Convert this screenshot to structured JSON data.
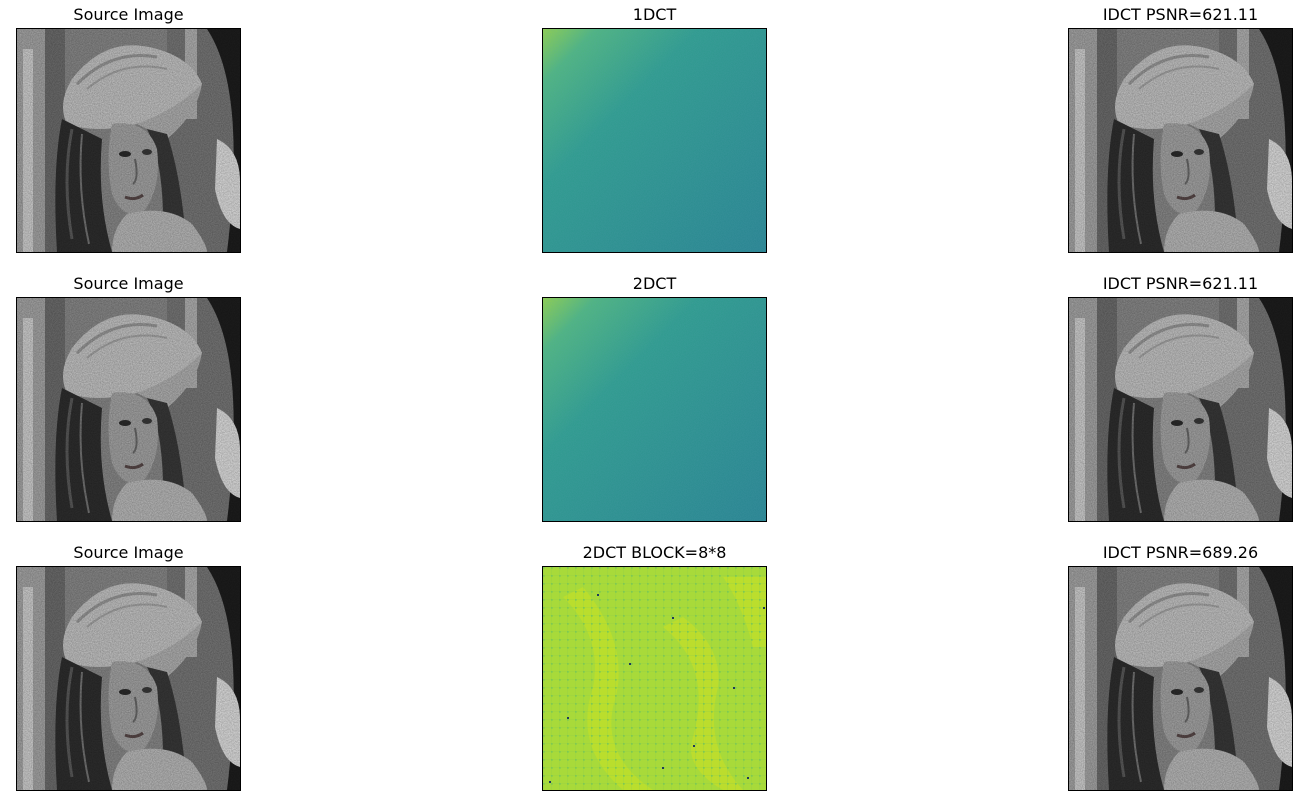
{
  "figure": {
    "rows": [
      {
        "panels": [
          {
            "title": "Source Image",
            "kind": "photo"
          },
          {
            "title": "1DCT",
            "kind": "dct-full"
          },
          {
            "title": "IDCT PSNR=621.11",
            "kind": "photo"
          }
        ]
      },
      {
        "panels": [
          {
            "title": "Source Image",
            "kind": "photo"
          },
          {
            "title": "2DCT",
            "kind": "dct-full"
          },
          {
            "title": "IDCT PSNR=621.11",
            "kind": "photo"
          }
        ]
      },
      {
        "panels": [
          {
            "title": "Source Image",
            "kind": "photo"
          },
          {
            "title": "2DCT BLOCK=8*8",
            "kind": "dct-block"
          },
          {
            "title": "IDCT PSNR=689.26",
            "kind": "photo"
          }
        ]
      }
    ]
  },
  "colors": {
    "background": "#ffffff",
    "frame": "#000000",
    "dct_full_base": "#26938c",
    "dct_full_corner": "#8fd248",
    "dct_block_base": "#a8da3a"
  }
}
